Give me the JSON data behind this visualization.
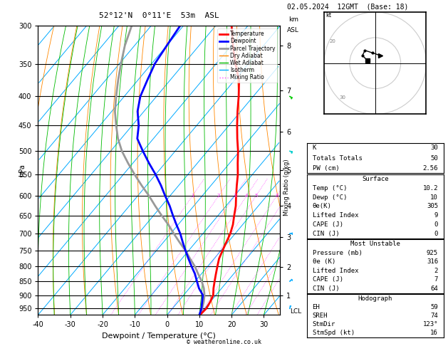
{
  "title_left": "52°12'N  0°11'E  53m  ASL",
  "title_right": "02.05.2024  12GMT  (Base: 18)",
  "xlabel": "Dewpoint / Temperature (°C)",
  "footer": "© weatheronline.co.uk",
  "pressure_levels": [
    300,
    350,
    400,
    450,
    500,
    550,
    600,
    650,
    700,
    750,
    800,
    850,
    900,
    950
  ],
  "xlim": [
    -40,
    35
  ],
  "pmin": 300,
  "pmax": 975,
  "full_skew": 75.0,
  "temp_profile": {
    "pressure": [
      975,
      950,
      925,
      900,
      875,
      850,
      825,
      800,
      775,
      750,
      725,
      700,
      675,
      650,
      625,
      600,
      575,
      550,
      525,
      500,
      475,
      450,
      425,
      400,
      375,
      350,
      325,
      300
    ],
    "temp": [
      10.2,
      10.5,
      10.0,
      9.2,
      7.5,
      6.0,
      4.5,
      3.0,
      1.5,
      0.5,
      -0.5,
      -1.5,
      -3.0,
      -5.0,
      -7.0,
      -9.5,
      -12.0,
      -14.5,
      -17.5,
      -20.5,
      -24.0,
      -27.5,
      -31.0,
      -34.5,
      -38.5,
      -44.0,
      -49.5,
      -55.0
    ]
  },
  "dewp_profile": {
    "pressure": [
      975,
      950,
      925,
      900,
      875,
      850,
      825,
      800,
      775,
      750,
      725,
      700,
      675,
      650,
      625,
      600,
      575,
      550,
      525,
      500,
      475,
      450,
      425,
      400,
      375,
      350,
      325,
      300
    ],
    "dewp": [
      10.0,
      9.0,
      7.5,
      6.0,
      3.0,
      0.5,
      -2.0,
      -5.0,
      -8.0,
      -11.0,
      -14.0,
      -17.0,
      -20.5,
      -24.0,
      -27.5,
      -31.5,
      -35.5,
      -40.0,
      -45.0,
      -50.0,
      -55.0,
      -58.0,
      -62.0,
      -65.0,
      -67.0,
      -69.0,
      -70.0,
      -71.0
    ]
  },
  "parcel_profile": {
    "pressure": [
      975,
      950,
      925,
      900,
      875,
      850,
      825,
      800,
      775,
      750,
      725,
      700,
      675,
      650,
      625,
      600,
      575,
      550,
      525,
      500,
      475,
      450,
      425,
      400,
      375,
      350,
      325,
      300
    ],
    "temp": [
      10.2,
      9.2,
      8.0,
      6.5,
      4.5,
      2.0,
      -1.0,
      -4.0,
      -7.5,
      -11.0,
      -15.0,
      -19.0,
      -23.0,
      -27.5,
      -32.0,
      -36.5,
      -41.5,
      -46.5,
      -51.5,
      -56.5,
      -61.0,
      -65.0,
      -69.0,
      -72.5,
      -76.0,
      -79.5,
      -83.0,
      -86.0
    ]
  },
  "km_ticks": [
    1,
    2,
    3,
    4,
    5,
    6,
    7,
    8
  ],
  "km_pressures": [
    900,
    802,
    710,
    625,
    541,
    462,
    390,
    325
  ],
  "mixing_ratio_vals": [
    1,
    2,
    3,
    4,
    5,
    8,
    10,
    15,
    20,
    25
  ],
  "stats_box1": [
    [
      "K",
      "30"
    ],
    [
      "Totals Totals",
      "50"
    ],
    [
      "PW (cm)",
      "2.56"
    ]
  ],
  "stats_surface_title": "Surface",
  "stats_surface": [
    [
      "Temp (°C)",
      "10.2"
    ],
    [
      "Dewp (°C)",
      "10"
    ],
    [
      "θe(K)",
      "305"
    ],
    [
      "Lifted Index",
      "9"
    ],
    [
      "CAPE (J)",
      "0"
    ],
    [
      "CIN (J)",
      "0"
    ]
  ],
  "stats_mu_title": "Most Unstable",
  "stats_mu": [
    [
      "Pressure (mb)",
      "925"
    ],
    [
      "θe (K)",
      "316"
    ],
    [
      "Lifted Index",
      "2"
    ],
    [
      "CAPE (J)",
      "7"
    ],
    [
      "CIN (J)",
      "64"
    ]
  ],
  "stats_hodo_title": "Hodograph",
  "stats_hodo": [
    [
      "EH",
      "59"
    ],
    [
      "SREH",
      "74"
    ],
    [
      "StmDir",
      "123°"
    ],
    [
      "StmSpd (kt)",
      "16"
    ]
  ],
  "hodograph_points": [
    [
      -3,
      1
    ],
    [
      -5,
      3
    ],
    [
      -4,
      5
    ],
    [
      -1,
      4
    ],
    [
      2,
      3
    ]
  ],
  "wind_barb_data": [
    {
      "pressure": 950,
      "color": "#00aaff",
      "speed": 8,
      "direction": 190
    },
    {
      "pressure": 850,
      "color": "#00aaff",
      "speed": 12,
      "direction": 230
    },
    {
      "pressure": 700,
      "color": "#00aaff",
      "speed": 18,
      "direction": 260
    },
    {
      "pressure": 500,
      "color": "#00cccc",
      "speed": 22,
      "direction": 285
    },
    {
      "pressure": 400,
      "color": "#00cc00",
      "speed": 16,
      "direction": 300
    }
  ],
  "isotherm_color": "#00aaff",
  "dryadiabat_color": "#ff8800",
  "wetadiabat_color": "#00bb00",
  "mixratio_color": "#ff44ff",
  "temp_color": "#ff0000",
  "dewp_color": "#0000ff",
  "parcel_color": "#999999",
  "grid_color": "#000000"
}
